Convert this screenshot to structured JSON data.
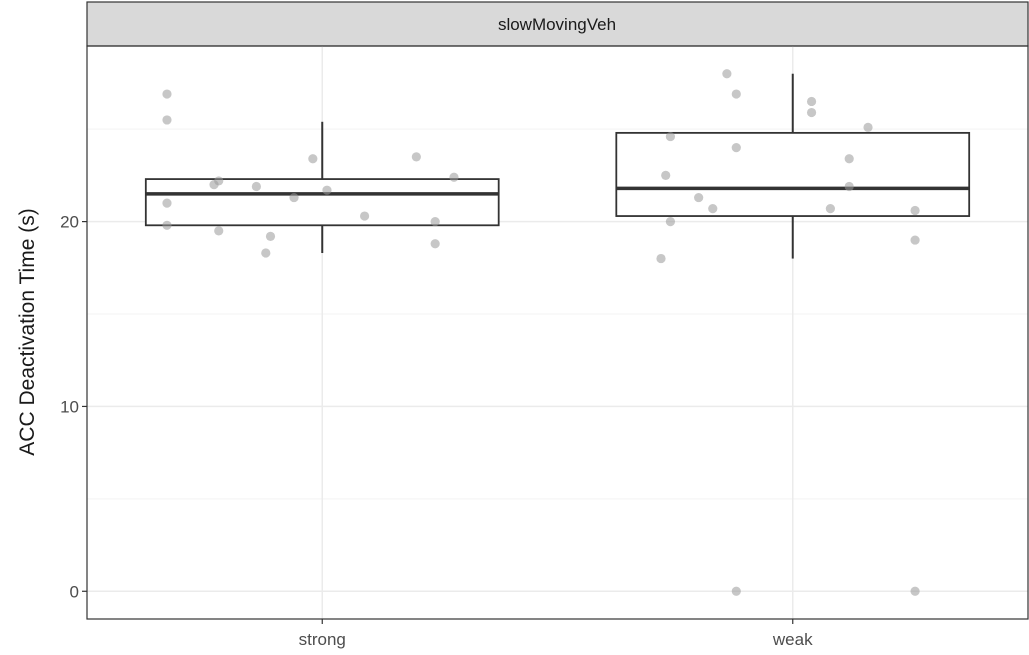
{
  "chart_data": {
    "type": "boxplot",
    "facet": "slowMovingVeh",
    "xlabel": "",
    "ylabel": "ACC Deactivation Time (s)",
    "categories": [
      "strong",
      "weak"
    ],
    "ylim": [
      -1.5,
      29.5
    ],
    "y_ticks": [
      0,
      10,
      20
    ],
    "grid": true,
    "boxes": [
      {
        "category": "strong",
        "lower_whisker": 18.3,
        "q1": 19.8,
        "median": 21.5,
        "q3": 22.3,
        "upper_whisker": 25.4
      },
      {
        "category": "weak",
        "lower_whisker": 18.0,
        "q1": 20.3,
        "median": 21.8,
        "q3": 24.8,
        "upper_whisker": 28.0
      }
    ],
    "points": [
      {
        "category": "strong",
        "x_jitter": -0.33,
        "y": 26.9
      },
      {
        "category": "strong",
        "x_jitter": -0.33,
        "y": 25.5
      },
      {
        "category": "strong",
        "x_jitter": -0.33,
        "y": 21.0
      },
      {
        "category": "strong",
        "x_jitter": -0.33,
        "y": 19.8
      },
      {
        "category": "strong",
        "x_jitter": -0.22,
        "y": 19.5
      },
      {
        "category": "strong",
        "x_jitter": -0.23,
        "y": 22.0
      },
      {
        "category": "strong",
        "x_jitter": -0.22,
        "y": 22.2
      },
      {
        "category": "strong",
        "x_jitter": -0.14,
        "y": 21.9
      },
      {
        "category": "strong",
        "x_jitter": -0.11,
        "y": 19.2
      },
      {
        "category": "strong",
        "x_jitter": -0.12,
        "y": 18.3
      },
      {
        "category": "strong",
        "x_jitter": -0.06,
        "y": 21.3
      },
      {
        "category": "strong",
        "x_jitter": -0.02,
        "y": 23.4
      },
      {
        "category": "strong",
        "x_jitter": 0.01,
        "y": 21.7
      },
      {
        "category": "strong",
        "x_jitter": 0.09,
        "y": 20.3
      },
      {
        "category": "strong",
        "x_jitter": 0.2,
        "y": 23.5
      },
      {
        "category": "strong",
        "x_jitter": 0.24,
        "y": 20.0
      },
      {
        "category": "strong",
        "x_jitter": 0.24,
        "y": 18.8
      },
      {
        "category": "strong",
        "x_jitter": 0.28,
        "y": 22.4
      },
      {
        "category": "weak",
        "x_jitter": -0.26,
        "y": 24.6
      },
      {
        "category": "weak",
        "x_jitter": -0.27,
        "y": 22.5
      },
      {
        "category": "weak",
        "x_jitter": -0.26,
        "y": 20.0
      },
      {
        "category": "weak",
        "x_jitter": -0.28,
        "y": 18.0
      },
      {
        "category": "weak",
        "x_jitter": -0.2,
        "y": 21.3
      },
      {
        "category": "weak",
        "x_jitter": -0.17,
        "y": 20.7
      },
      {
        "category": "weak",
        "x_jitter": -0.14,
        "y": 28.0
      },
      {
        "category": "weak",
        "x_jitter": -0.12,
        "y": 26.9
      },
      {
        "category": "weak",
        "x_jitter": -0.12,
        "y": 24.0
      },
      {
        "category": "weak",
        "x_jitter": -0.12,
        "y": 0.0
      },
      {
        "category": "weak",
        "x_jitter": 0.04,
        "y": 26.5
      },
      {
        "category": "weak",
        "x_jitter": 0.04,
        "y": 25.9
      },
      {
        "category": "weak",
        "x_jitter": 0.08,
        "y": 20.7
      },
      {
        "category": "weak",
        "x_jitter": 0.12,
        "y": 23.4
      },
      {
        "category": "weak",
        "x_jitter": 0.12,
        "y": 21.9
      },
      {
        "category": "weak",
        "x_jitter": 0.16,
        "y": 25.1
      },
      {
        "category": "weak",
        "x_jitter": 0.26,
        "y": 20.6
      },
      {
        "category": "weak",
        "x_jitter": 0.26,
        "y": 19.0
      },
      {
        "category": "weak",
        "x_jitter": 0.26,
        "y": 0.0
      }
    ],
    "colors": {
      "strip_fill": "#d9d9d9",
      "panel_border": "#333333",
      "grid_major": "#ebebeb",
      "grid_minor": "#f3f3f3",
      "box_line": "#333333",
      "point_fill": "#999999"
    }
  }
}
